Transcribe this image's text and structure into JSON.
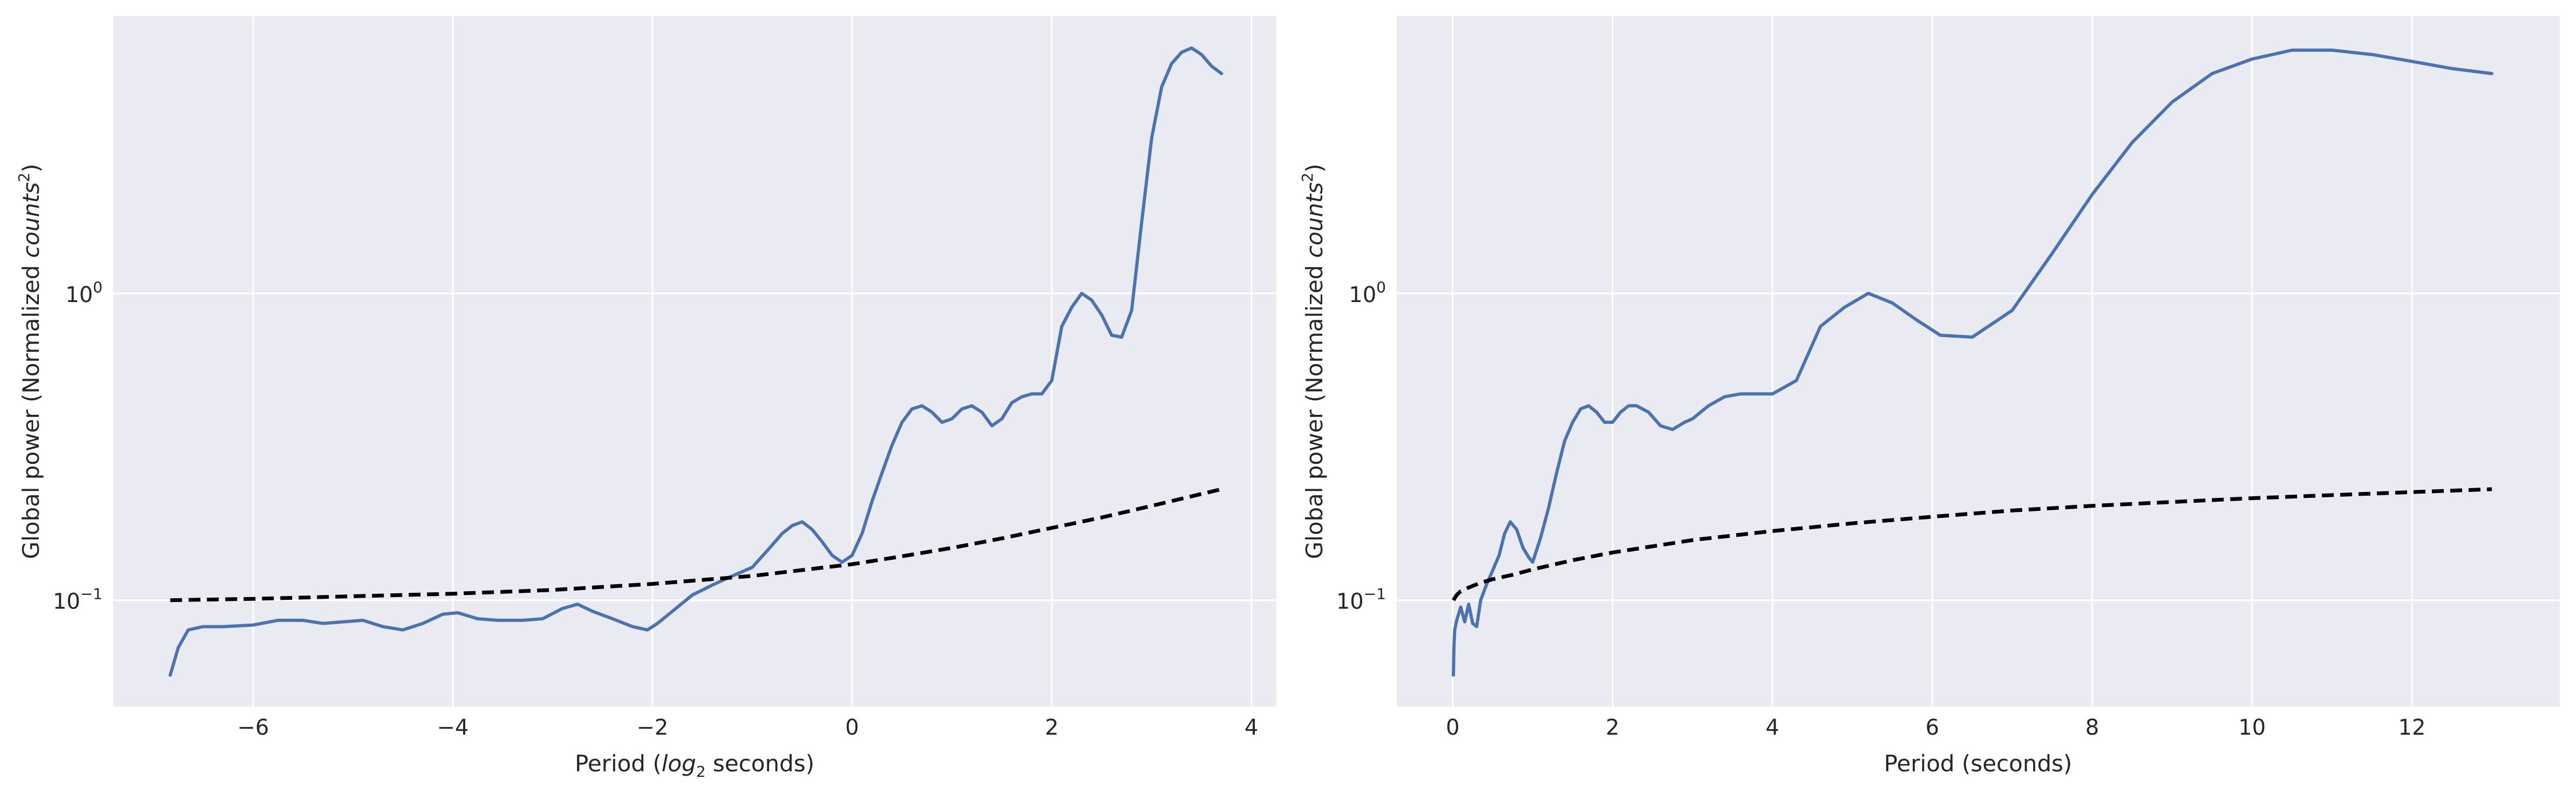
{
  "theme": {
    "panel_bg": "#eaeaf2",
    "grid_color": "#ffffff",
    "series_color": "#4c72b0",
    "significance_color": "#000000",
    "text_color": "#262626"
  },
  "chart_data": [
    {
      "type": "line",
      "xlabel_pre": "Period (",
      "xlabel_math": "log",
      "xlabel_sub": "2",
      "xlabel_post": " seconds)",
      "ylabel_pre": "Global power (Normalized ",
      "ylabel_math": "counts",
      "ylabel_sup": "2",
      "ylabel_post": ")",
      "x_scale": "linear",
      "y_scale": "log",
      "xlim": [
        -7.4,
        4.25
      ],
      "ylim": [
        0.045,
        8.0
      ],
      "xticks": [
        -6,
        -4,
        -2,
        0,
        2,
        4
      ],
      "xtick_labels": [
        "−6",
        "−4",
        "−2",
        "0",
        "2",
        "4"
      ],
      "yticks": [
        0.1,
        1
      ],
      "ytick_labels": [
        {
          "base": "10",
          "exp": "−1"
        },
        {
          "base": "10",
          "exp": "0"
        }
      ],
      "grid": true,
      "series": [
        {
          "role": "global-power",
          "style": "solid",
          "x": [
            -6.83,
            -6.75,
            -6.65,
            -6.5,
            -6.3,
            -6.0,
            -5.75,
            -5.5,
            -5.3,
            -5.1,
            -4.9,
            -4.7,
            -4.5,
            -4.3,
            -4.1,
            -3.95,
            -3.75,
            -3.55,
            -3.3,
            -3.1,
            -2.9,
            -2.75,
            -2.6,
            -2.4,
            -2.2,
            -2.05,
            -1.95,
            -1.8,
            -1.6,
            -1.4,
            -1.2,
            -1.0,
            -0.85,
            -0.7,
            -0.6,
            -0.5,
            -0.4,
            -0.3,
            -0.2,
            -0.1,
            0.0,
            0.1,
            0.2,
            0.3,
            0.4,
            0.5,
            0.6,
            0.7,
            0.8,
            0.9,
            1.0,
            1.1,
            1.2,
            1.3,
            1.4,
            1.5,
            1.6,
            1.7,
            1.8,
            1.9,
            2.0,
            2.1,
            2.2,
            2.3,
            2.4,
            2.5,
            2.6,
            2.7,
            2.8,
            2.9,
            3.0,
            3.1,
            3.2,
            3.3,
            3.4,
            3.5,
            3.6,
            3.7
          ],
          "y": [
            0.057,
            0.07,
            0.08,
            0.082,
            0.082,
            0.083,
            0.086,
            0.086,
            0.084,
            0.085,
            0.086,
            0.082,
            0.08,
            0.084,
            0.09,
            0.091,
            0.087,
            0.086,
            0.086,
            0.087,
            0.094,
            0.097,
            0.092,
            0.087,
            0.082,
            0.08,
            0.084,
            0.092,
            0.104,
            0.112,
            0.12,
            0.128,
            0.145,
            0.165,
            0.175,
            0.18,
            0.17,
            0.155,
            0.14,
            0.133,
            0.14,
            0.165,
            0.21,
            0.26,
            0.32,
            0.38,
            0.42,
            0.43,
            0.41,
            0.38,
            0.39,
            0.42,
            0.43,
            0.41,
            0.37,
            0.39,
            0.44,
            0.46,
            0.47,
            0.47,
            0.52,
            0.78,
            0.9,
            1.0,
            0.95,
            0.85,
            0.73,
            0.72,
            0.88,
            1.7,
            3.2,
            4.7,
            5.6,
            6.1,
            6.3,
            6.0,
            5.5,
            5.2
          ]
        },
        {
          "role": "significance",
          "style": "dashed",
          "x": [
            -6.83,
            -6.0,
            -5.0,
            -4.0,
            -3.0,
            -2.0,
            -1.0,
            0.0,
            0.5,
            1.0,
            1.5,
            2.0,
            2.5,
            3.0,
            3.5,
            3.7
          ],
          "y": [
            0.1,
            0.101,
            0.103,
            0.105,
            0.108,
            0.113,
            0.12,
            0.131,
            0.139,
            0.148,
            0.159,
            0.172,
            0.186,
            0.203,
            0.222,
            0.23
          ]
        }
      ]
    },
    {
      "type": "line",
      "xlabel_pre": "Period (seconds)",
      "xlabel_math": "",
      "xlabel_sub": "",
      "xlabel_post": "",
      "ylabel_pre": "Global power (Normalized ",
      "ylabel_math": "counts",
      "ylabel_sup": "2",
      "ylabel_post": ")",
      "x_scale": "linear",
      "y_scale": "log",
      "xlim": [
        -0.7,
        13.85
      ],
      "ylim": [
        0.045,
        8.0
      ],
      "xticks": [
        0,
        2,
        4,
        6,
        8,
        10,
        12
      ],
      "xtick_labels": [
        "0",
        "2",
        "4",
        "6",
        "8",
        "10",
        "12"
      ],
      "yticks": [
        0.1,
        1
      ],
      "ytick_labels": [
        {
          "base": "10",
          "exp": "−1"
        },
        {
          "base": "10",
          "exp": "0"
        }
      ],
      "grid": true,
      "series": [
        {
          "role": "global-power",
          "style": "solid",
          "x": [
            0.009,
            0.015,
            0.025,
            0.05,
            0.1,
            0.15,
            0.2,
            0.25,
            0.3,
            0.35,
            0.42,
            0.5,
            0.58,
            0.65,
            0.72,
            0.8,
            0.88,
            0.95,
            1.0,
            1.1,
            1.2,
            1.3,
            1.4,
            1.5,
            1.6,
            1.7,
            1.8,
            1.9,
            2.0,
            2.1,
            2.2,
            2.3,
            2.45,
            2.6,
            2.75,
            2.9,
            3.0,
            3.2,
            3.4,
            3.6,
            3.8,
            4.0,
            4.3,
            4.6,
            4.9,
            5.2,
            5.5,
            5.8,
            6.1,
            6.5,
            7.0,
            7.5,
            8.0,
            8.5,
            9.0,
            9.5,
            10.0,
            10.5,
            11.0,
            11.5,
            12.0,
            12.5,
            13.0
          ],
          "y": [
            0.057,
            0.07,
            0.08,
            0.086,
            0.095,
            0.085,
            0.097,
            0.084,
            0.082,
            0.1,
            0.112,
            0.125,
            0.14,
            0.165,
            0.18,
            0.17,
            0.148,
            0.138,
            0.133,
            0.16,
            0.2,
            0.26,
            0.33,
            0.38,
            0.42,
            0.43,
            0.41,
            0.38,
            0.38,
            0.41,
            0.43,
            0.43,
            0.41,
            0.37,
            0.36,
            0.38,
            0.39,
            0.43,
            0.46,
            0.47,
            0.47,
            0.47,
            0.52,
            0.78,
            0.9,
            1.0,
            0.93,
            0.82,
            0.73,
            0.72,
            0.88,
            1.35,
            2.1,
            3.1,
            4.2,
            5.2,
            5.8,
            6.2,
            6.2,
            6.0,
            5.7,
            5.4,
            5.2
          ]
        },
        {
          "role": "significance",
          "style": "dashed",
          "x": [
            0.009,
            0.05,
            0.1,
            0.2,
            0.35,
            0.5,
            0.75,
            1.0,
            1.5,
            2.0,
            3.0,
            4.0,
            5.0,
            6.0,
            7.0,
            8.0,
            9.0,
            10.0,
            11.0,
            12.0,
            13.0
          ],
          "y": [
            0.1,
            0.104,
            0.107,
            0.11,
            0.114,
            0.117,
            0.121,
            0.126,
            0.135,
            0.143,
            0.157,
            0.168,
            0.178,
            0.187,
            0.196,
            0.203,
            0.209,
            0.215,
            0.22,
            0.225,
            0.23
          ]
        }
      ]
    }
  ]
}
